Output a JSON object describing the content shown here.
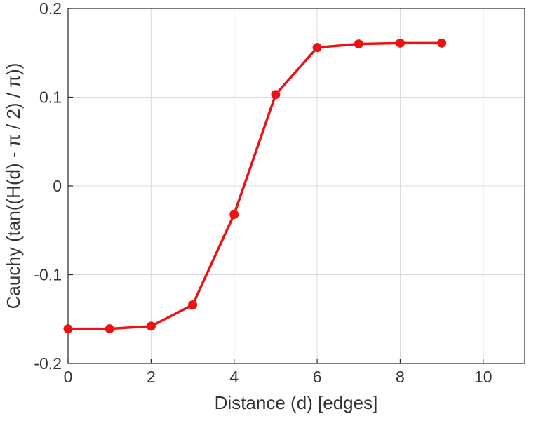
{
  "chart_data": {
    "type": "line",
    "title": "",
    "xlabel": "Distance (d) [edges]",
    "ylabel": "Cauchy (tan((H(d) -  π / 2) /  π))",
    "x": [
      0,
      1,
      2,
      3,
      4,
      5,
      6,
      7,
      8,
      9
    ],
    "y": [
      -0.161,
      -0.161,
      -0.158,
      -0.134,
      -0.032,
      0.103,
      0.156,
      0.16,
      0.161,
      0.161
    ],
    "xlim": [
      0,
      11
    ],
    "ylim": [
      -0.2,
      0.2
    ],
    "xticks": [
      0,
      2,
      4,
      6,
      8,
      10
    ],
    "xtick_labels": [
      "0",
      "2",
      "4",
      "6",
      "8",
      "10"
    ],
    "yticks": [
      -0.2,
      -0.1,
      0,
      0.1,
      0.2
    ],
    "ytick_labels": [
      "-0.2",
      "-0.1",
      "0",
      "0.1",
      "0.2"
    ],
    "grid": true,
    "legend": "none",
    "line_color": "#ee1111",
    "marker": "filled-circle",
    "marker_size": 6.5,
    "axis_color": "#262626",
    "grid_color": "#d9d9d9",
    "text_color": "#333333",
    "background_color": "#ffffff"
  }
}
